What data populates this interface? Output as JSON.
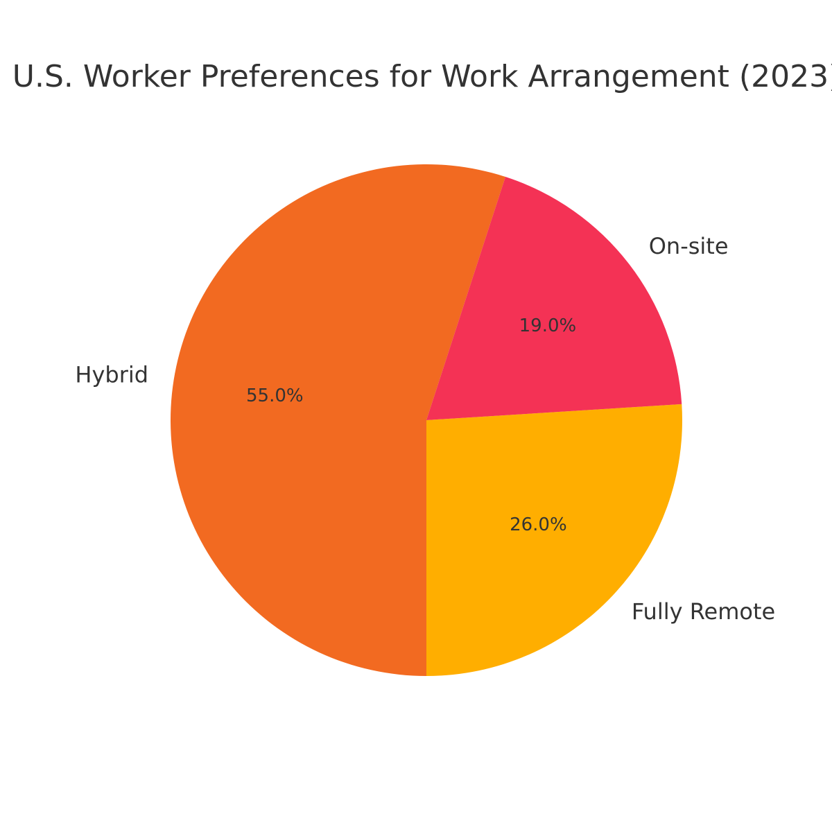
{
  "chart_data": {
    "type": "pie",
    "title": "U.S. Worker Preferences for Work Arrangement (2023)",
    "slices": [
      {
        "label": "Hybrid",
        "value": 55.0,
        "pct_label": "55.0%",
        "color": "#F26A21"
      },
      {
        "label": "Fully Remote",
        "value": 26.0,
        "pct_label": "26.0%",
        "color": "#FFAE00"
      },
      {
        "label": "On-site",
        "value": 19.0,
        "pct_label": "19.0%",
        "color": "#F43255"
      }
    ],
    "legend": "none",
    "start_angle_deg": 72,
    "direction": "counterclockwise"
  }
}
